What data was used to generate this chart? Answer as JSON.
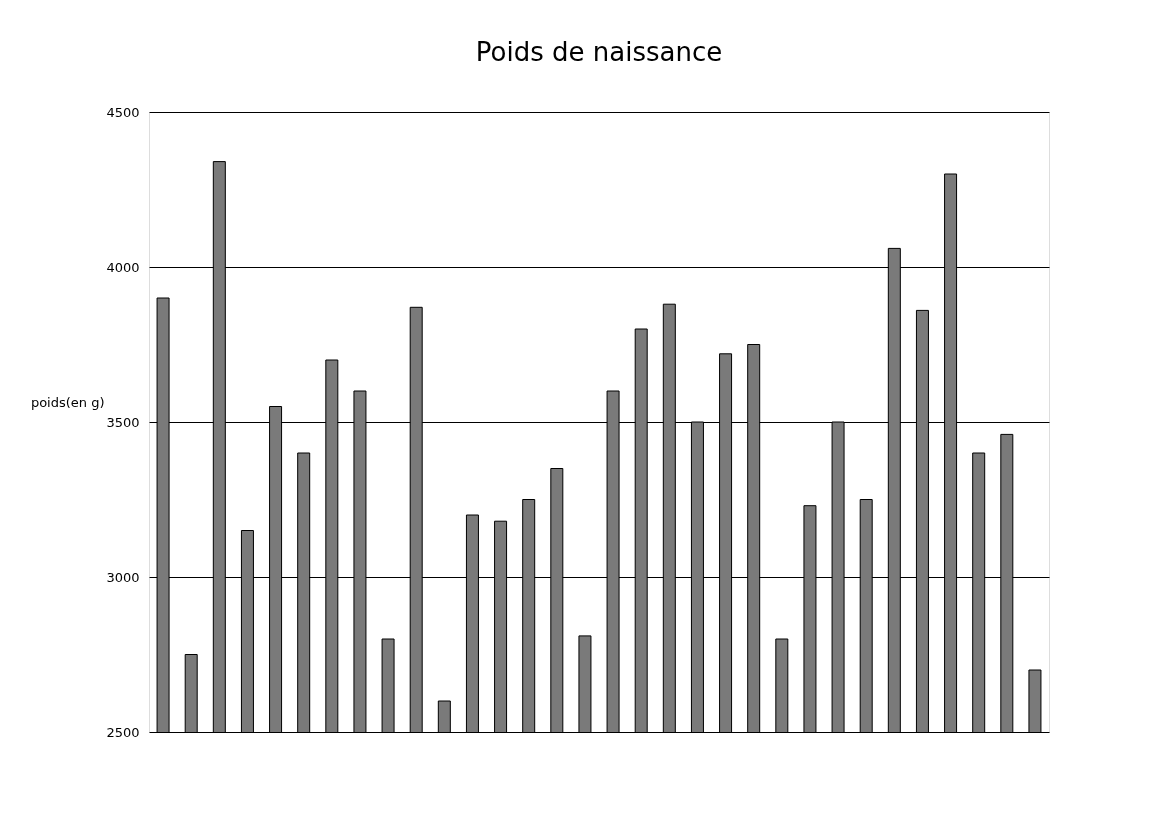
{
  "chart_data": {
    "type": "bar",
    "title": "Poids de naissance",
    "ylabel": "poids(en g)",
    "categories": [
      null,
      null,
      null,
      null,
      null,
      null,
      null,
      null,
      null,
      null,
      null,
      null,
      null,
      null,
      null,
      null,
      null,
      null,
      null,
      null,
      null,
      null,
      null,
      null,
      null,
      null,
      null,
      null,
      null,
      null,
      null,
      null
    ],
    "values": [
      3900,
      2750,
      4340,
      3150,
      3550,
      3400,
      3700,
      3600,
      2800,
      3870,
      2600,
      3200,
      3180,
      3250,
      3350,
      2810,
      3600,
      3800,
      3880,
      3500,
      3720,
      3750,
      2800,
      3230,
      3500,
      3250,
      4060,
      3860,
      4300,
      3400,
      3460,
      2700
    ],
    "color": "#7a7a7a",
    "ylim": [
      2500,
      4500
    ],
    "yticks": [
      2500,
      3000,
      3500,
      4000,
      4500
    ],
    "grid": "y"
  }
}
